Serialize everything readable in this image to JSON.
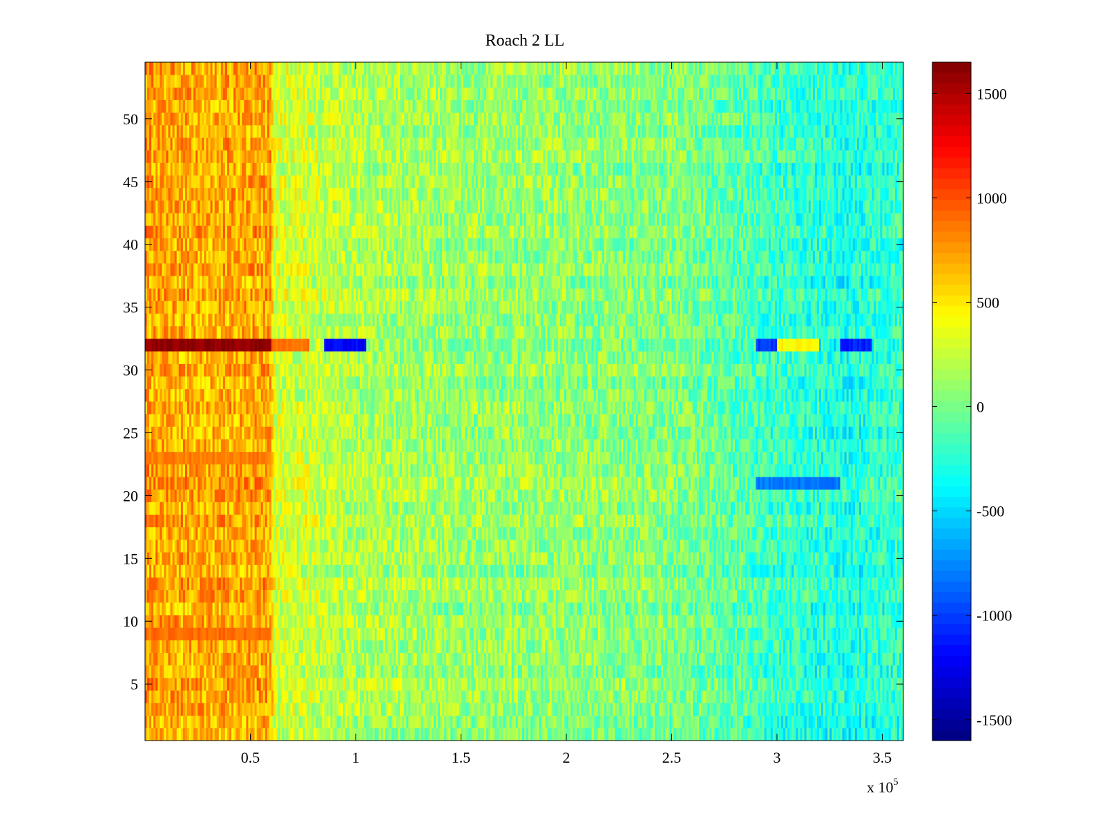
{
  "chart_data": {
    "type": "heatmap",
    "title": "Roach 2 LL",
    "xlabel": "",
    "ylabel": "",
    "x_multiplier": {
      "prefix": "x 10",
      "exponent": "5"
    },
    "xlim": [
      0,
      3.6
    ],
    "ylim": [
      0.5,
      54.5
    ],
    "x_ticks": [
      0.5,
      1,
      1.5,
      2,
      2.5,
      3,
      3.5
    ],
    "x_tick_labels": [
      "0.5",
      "1",
      "1.5",
      "2",
      "2.5",
      "3",
      "3.5"
    ],
    "y_ticks": [
      5,
      10,
      15,
      20,
      25,
      30,
      35,
      40,
      45,
      50
    ],
    "y_tick_labels": [
      "5",
      "10",
      "15",
      "20",
      "25",
      "30",
      "35",
      "40",
      "45",
      "50"
    ],
    "colorbar": {
      "colormap": "jet",
      "range": [
        -1600,
        1650
      ],
      "ticks": [
        1500,
        1000,
        500,
        0,
        -500,
        -1000,
        -1500
      ],
      "tick_labels": [
        "1500",
        "1000",
        "500",
        "0",
        "-500",
        "-1000",
        "-1500"
      ]
    },
    "rows": 54,
    "profile": {
      "x": [
        0,
        0.05,
        0.1,
        0.3,
        0.4,
        0.6,
        0.61,
        0.8,
        1.0,
        1.5,
        2.0,
        2.5,
        2.7,
        2.9,
        3.0,
        3.2,
        3.3,
        3.4,
        3.6
      ],
      "mean": [
        750,
        720,
        700,
        680,
        700,
        720,
        300,
        250,
        180,
        100,
        80,
        30,
        -50,
        -150,
        -200,
        -250,
        -300,
        -280,
        -200
      ]
    },
    "row_offsets": [
      {
        "row": 32,
        "x_range": [
          0,
          0.6
        ],
        "value": 1600
      },
      {
        "row": 32,
        "x_range": [
          0.6,
          0.78
        ],
        "value": 900
      },
      {
        "row": 32,
        "x_range": [
          0.85,
          1.05
        ],
        "value": -1200
      },
      {
        "row": 32,
        "x_range": [
          2.9,
          3.0
        ],
        "value": -1000
      },
      {
        "row": 32,
        "x_range": [
          3.0,
          3.2
        ],
        "value": 450
      },
      {
        "row": 32,
        "x_range": [
          3.3,
          3.45
        ],
        "value": -1100
      },
      {
        "row": 9,
        "x_range": [
          0,
          0.6
        ],
        "value": 900
      },
      {
        "row": 23,
        "x_range": [
          0,
          0.6
        ],
        "value": 850
      },
      {
        "row": 21,
        "x_range": [
          2.9,
          3.3
        ],
        "value": -800
      }
    ],
    "grid": false,
    "legend": "none"
  }
}
